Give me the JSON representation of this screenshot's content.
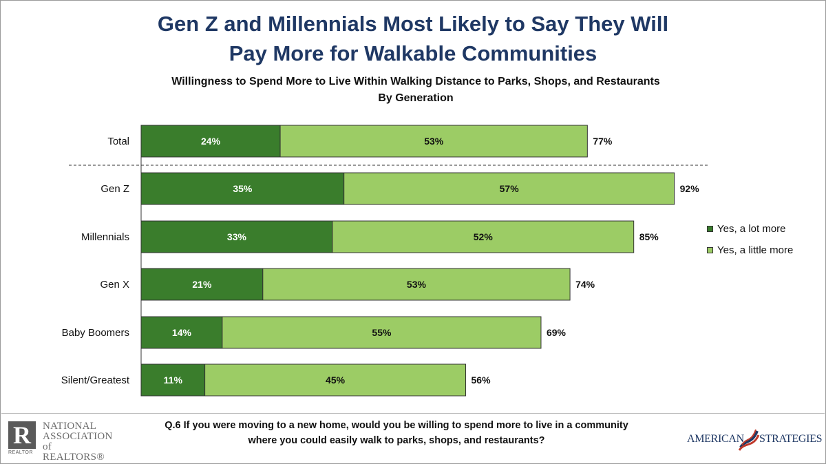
{
  "title_lines": [
    "Gen Z and Millennials Most Likely to Say They Will",
    "Pay More for Walkable Communities"
  ],
  "subtitle_lines": [
    "Willingness to Spend More to Live Within Walking Distance to Parks, Shops, and Restaurants",
    "By Generation"
  ],
  "chart_data": {
    "type": "bar",
    "orientation": "horizontal",
    "stacked": true,
    "categories": [
      "Total",
      "Gen Z",
      "Millennials",
      "Gen X",
      "Baby Boomers",
      "Silent/Greatest"
    ],
    "series": [
      {
        "name": "Yes, a lot more",
        "values": [
          24,
          35,
          33,
          21,
          14,
          11
        ],
        "labels": [
          "24%",
          "35%",
          "33%",
          "21%",
          "14%",
          "11%"
        ],
        "color": "#3a7d2c"
      },
      {
        "name": "Yes, a little more",
        "values": [
          53,
          57,
          52,
          53,
          55,
          45
        ],
        "labels": [
          "53%",
          "57%",
          "52%",
          "53%",
          "55%",
          "45%"
        ],
        "color": "#9ccc65"
      }
    ],
    "totals": [
      77,
      92,
      85,
      74,
      69,
      56
    ],
    "total_labels": [
      "77%",
      "92%",
      "85%",
      "74%",
      "69%",
      "56%"
    ],
    "xlim": [
      0,
      100
    ],
    "separator_after_category": "Total",
    "legend_position": "right",
    "grid": false
  },
  "footer": {
    "question_lines": [
      "Q.6 If you were moving to a new home, would you be willing to spend more to live in a community",
      "where you could easily walk to parks, shops, and restaurants?"
    ],
    "left_logo": {
      "mark": "R",
      "mark_caption": "REALTOR",
      "lines": [
        "NATIONAL",
        "ASSOCIATION of",
        "REALTORS®"
      ]
    },
    "right_logo": {
      "left_word": "AMERICAN",
      "right_word": "STRATEGIES"
    }
  }
}
